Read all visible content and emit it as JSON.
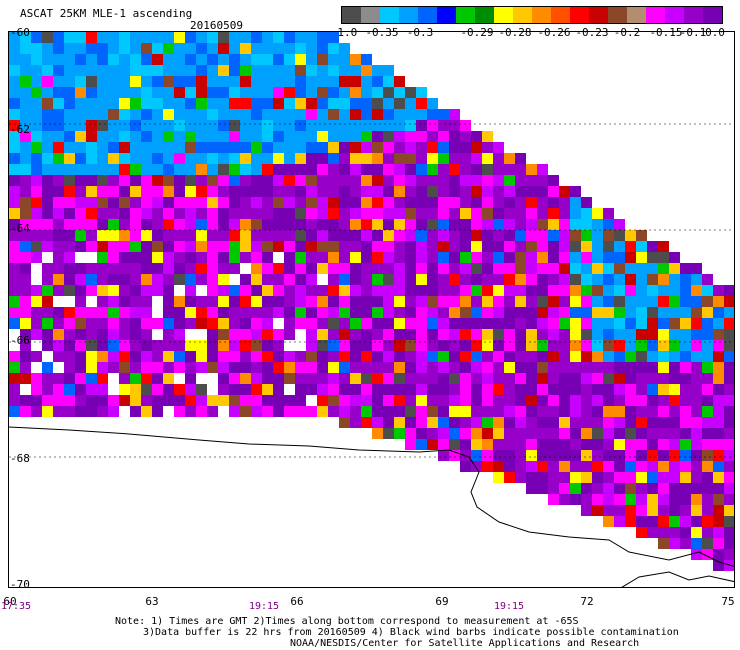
{
  "header": {
    "title": "ASCAT 25KM MLE-1 ascending",
    "date": "20160509"
  },
  "colorbar": {
    "colors": [
      "#4d4d4d",
      "#8c8c8c",
      "#00c8ff",
      "#00a0ff",
      "#0064ff",
      "#0000ff",
      "#00c800",
      "#008c00",
      "#ffff00",
      "#ffc800",
      "#ff8c00",
      "#ff5000",
      "#ff0000",
      "#c80000",
      "#8c4628",
      "#b48c6e",
      "#ff00ff",
      "#c800ff",
      "#9600c8",
      "#7800b4"
    ],
    "labels": [
      "-1.0",
      "-0.35",
      "-0.3",
      "-0.29",
      "-0.28",
      "-0.26",
      "-0.23",
      "-0.2",
      "-0.15",
      "-0.1",
      "0.0"
    ]
  },
  "axes": {
    "lat_labels": [
      "-60",
      "-62",
      "-64",
      "-66",
      "-68",
      "-70"
    ],
    "lon_labels": [
      "60",
      "63",
      "66",
      "69",
      "72",
      "75"
    ],
    "time_labels": [
      "17:35",
      "19:15",
      "19:15"
    ]
  },
  "notes": {
    "line1": "Note: 1) Times are GMT 2)Times along bottom correspond to measurement at -65S",
    "line2": "3)Data buffer is 22 hrs from 20160509 4) Black wind barbs indicate possible contamination",
    "line3": "NOAA/NESDIS/Center for Satellite Applications and Research"
  }
}
